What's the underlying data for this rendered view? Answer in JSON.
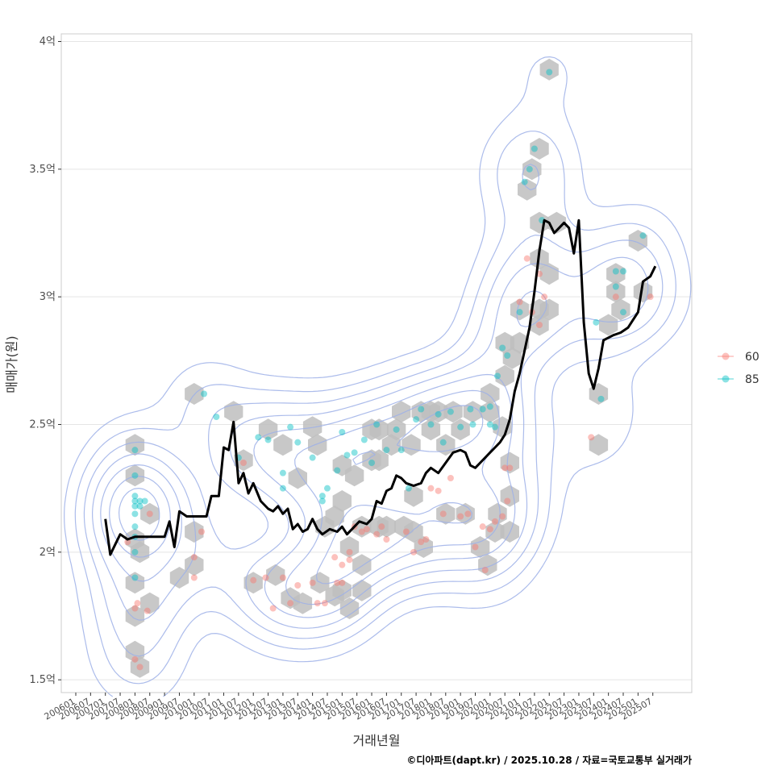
{
  "chart_data": {
    "type": "line",
    "title": "",
    "xlabel": "거래년월",
    "ylabel": "매매가(원)",
    "caption": "©디아파트(dapt.kr) / 2025.10.28 / 자료=국토교통부 실거래가",
    "x_range": [
      "2006-01",
      "2025-12"
    ],
    "ylim": [
      1.45,
      4.03
    ],
    "y_ticks": [
      {
        "value": 1.5,
        "label": "1.5억"
      },
      {
        "value": 2.0,
        "label": "2억"
      },
      {
        "value": 2.5,
        "label": "2.5억"
      },
      {
        "value": 3.0,
        "label": "3억"
      },
      {
        "value": 3.5,
        "label": "3.5억"
      },
      {
        "value": 4.0,
        "label": "4억"
      }
    ],
    "x_ticks": [
      "200601",
      "200607",
      "200701",
      "200707",
      "200801",
      "200807",
      "200901",
      "200907",
      "201001",
      "201007",
      "201101",
      "201107",
      "201201",
      "201207",
      "201301",
      "201307",
      "201401",
      "201407",
      "201501",
      "201507",
      "201601",
      "201607",
      "201701",
      "201707",
      "201801",
      "201807",
      "201901",
      "201907",
      "202001",
      "202007",
      "202101",
      "202107",
      "202201",
      "202207",
      "202301",
      "202307",
      "202401",
      "202407",
      "202501",
      "202507"
    ],
    "legend": {
      "position": "right",
      "entries": [
        {
          "label": "60",
          "color": "#F8766D"
        },
        {
          "label": "85",
          "color": "#00BFC4"
        }
      ]
    },
    "colors": {
      "line": "#000000",
      "hex": "#BEBEBE",
      "contour": "#9DB0E8",
      "grid": "#E5E5E5",
      "panel_border": "#CCCCCC"
    },
    "trend_line": [
      [
        "2007-01",
        2.13
      ],
      [
        "2007-03",
        1.99
      ],
      [
        "2007-05",
        2.03
      ],
      [
        "2007-07",
        2.07
      ],
      [
        "2007-10",
        2.05
      ],
      [
        "2008-01",
        2.06
      ],
      [
        "2008-06",
        2.06
      ],
      [
        "2008-10",
        2.06
      ],
      [
        "2009-01",
        2.06
      ],
      [
        "2009-03",
        2.12
      ],
      [
        "2009-05",
        2.02
      ],
      [
        "2009-07",
        2.16
      ],
      [
        "2009-10",
        2.14
      ],
      [
        "2010-01",
        2.14
      ],
      [
        "2010-06",
        2.14
      ],
      [
        "2010-08",
        2.22
      ],
      [
        "2010-11",
        2.22
      ],
      [
        "2011-01",
        2.41
      ],
      [
        "2011-03",
        2.4
      ],
      [
        "2011-05",
        2.51
      ],
      [
        "2011-07",
        2.27
      ],
      [
        "2011-09",
        2.31
      ],
      [
        "2011-11",
        2.23
      ],
      [
        "2012-01",
        2.27
      ],
      [
        "2012-04",
        2.2
      ],
      [
        "2012-07",
        2.17
      ],
      [
        "2012-09",
        2.16
      ],
      [
        "2012-11",
        2.18
      ],
      [
        "2013-01",
        2.15
      ],
      [
        "2013-03",
        2.17
      ],
      [
        "2013-05",
        2.09
      ],
      [
        "2013-07",
        2.11
      ],
      [
        "2013-09",
        2.08
      ],
      [
        "2013-11",
        2.09
      ],
      [
        "2014-01",
        2.13
      ],
      [
        "2014-03",
        2.09
      ],
      [
        "2014-05",
        2.07
      ],
      [
        "2014-08",
        2.09
      ],
      [
        "2014-11",
        2.08
      ],
      [
        "2015-01",
        2.1
      ],
      [
        "2015-03",
        2.07
      ],
      [
        "2015-05",
        2.09
      ],
      [
        "2015-08",
        2.12
      ],
      [
        "2015-11",
        2.11
      ],
      [
        "2016-01",
        2.13
      ],
      [
        "2016-03",
        2.2
      ],
      [
        "2016-05",
        2.19
      ],
      [
        "2016-07",
        2.24
      ],
      [
        "2016-09",
        2.25
      ],
      [
        "2016-11",
        2.3
      ],
      [
        "2017-01",
        2.29
      ],
      [
        "2017-03",
        2.27
      ],
      [
        "2017-06",
        2.26
      ],
      [
        "2017-09",
        2.27
      ],
      [
        "2017-11",
        2.31
      ],
      [
        "2018-01",
        2.33
      ],
      [
        "2018-04",
        2.31
      ],
      [
        "2018-07",
        2.35
      ],
      [
        "2018-10",
        2.39
      ],
      [
        "2019-01",
        2.4
      ],
      [
        "2019-03",
        2.39
      ],
      [
        "2019-05",
        2.34
      ],
      [
        "2019-07",
        2.33
      ],
      [
        "2019-09",
        2.35
      ],
      [
        "2019-11",
        2.37
      ],
      [
        "2020-01",
        2.39
      ],
      [
        "2020-03",
        2.41
      ],
      [
        "2020-05",
        2.43
      ],
      [
        "2020-07",
        2.46
      ],
      [
        "2020-09",
        2.52
      ],
      [
        "2020-11",
        2.63
      ],
      [
        "2021-01",
        2.7
      ],
      [
        "2021-03",
        2.79
      ],
      [
        "2021-05",
        2.88
      ],
      [
        "2021-07",
        3.02
      ],
      [
        "2021-09",
        3.18
      ],
      [
        "2021-11",
        3.3
      ],
      [
        "2022-01",
        3.29
      ],
      [
        "2022-03",
        3.25
      ],
      [
        "2022-05",
        3.27
      ],
      [
        "2022-07",
        3.29
      ],
      [
        "2022-09",
        3.27
      ],
      [
        "2022-11",
        3.17
      ],
      [
        "2023-01",
        3.3
      ],
      [
        "2023-03",
        2.9
      ],
      [
        "2023-05",
        2.7
      ],
      [
        "2023-07",
        2.64
      ],
      [
        "2023-09",
        2.72
      ],
      [
        "2023-11",
        2.83
      ],
      [
        "2024-01",
        2.84
      ],
      [
        "2024-03",
        2.85
      ],
      [
        "2024-06",
        2.86
      ],
      [
        "2024-09",
        2.88
      ],
      [
        "2024-11",
        2.91
      ],
      [
        "2025-01",
        2.94
      ],
      [
        "2025-03",
        3.06
      ],
      [
        "2025-06",
        3.08
      ],
      [
        "2025-08",
        3.12
      ]
    ],
    "hex_bins": [
      [
        "2008-01",
        2.42
      ],
      [
        "2008-01",
        2.3
      ],
      [
        "2008-01",
        2.05
      ],
      [
        "2008-01",
        1.88
      ],
      [
        "2008-03",
        2.0
      ],
      [
        "2008-07",
        2.15
      ],
      [
        "2008-07",
        1.8
      ],
      [
        "2008-01",
        1.75
      ],
      [
        "2008-01",
        1.61
      ],
      [
        "2008-03",
        1.55
      ],
      [
        "2009-07",
        1.9
      ],
      [
        "2010-01",
        2.08
      ],
      [
        "2010-01",
        1.95
      ],
      [
        "2010-01",
        2.62
      ],
      [
        "2011-05",
        2.55
      ],
      [
        "2011-09",
        2.36
      ],
      [
        "2012-01",
        1.88
      ],
      [
        "2012-07",
        2.48
      ],
      [
        "2012-10",
        1.91
      ],
      [
        "2013-01",
        2.42
      ],
      [
        "2013-04",
        1.82
      ],
      [
        "2013-07",
        2.29
      ],
      [
        "2013-09",
        1.8
      ],
      [
        "2014-01",
        2.49
      ],
      [
        "2014-03",
        2.42
      ],
      [
        "2014-04",
        1.88
      ],
      [
        "2014-06",
        2.1
      ],
      [
        "2014-10",
        1.83
      ],
      [
        "2014-10",
        2.14
      ],
      [
        "2015-01",
        2.34
      ],
      [
        "2015-01",
        2.2
      ],
      [
        "2015-01",
        1.85
      ],
      [
        "2015-04",
        2.02
      ],
      [
        "2015-04",
        1.78
      ],
      [
        "2015-06",
        2.3
      ],
      [
        "2015-09",
        2.1
      ],
      [
        "2015-09",
        1.95
      ],
      [
        "2015-09",
        1.85
      ],
      [
        "2016-01",
        2.48
      ],
      [
        "2016-01",
        2.36
      ],
      [
        "2016-04",
        2.48
      ],
      [
        "2016-04",
        2.36
      ],
      [
        "2016-04",
        2.1
      ],
      [
        "2016-07",
        2.1
      ],
      [
        "2016-09",
        2.42
      ],
      [
        "2016-11",
        2.48
      ],
      [
        "2017-01",
        2.55
      ],
      [
        "2017-02",
        2.1
      ],
      [
        "2017-05",
        2.42
      ],
      [
        "2017-06",
        2.22
      ],
      [
        "2017-06",
        2.08
      ],
      [
        "2017-09",
        2.55
      ],
      [
        "2017-10",
        2.02
      ],
      [
        "2018-01",
        2.55
      ],
      [
        "2018-01",
        2.48
      ],
      [
        "2018-04",
        2.55
      ],
      [
        "2018-07",
        2.42
      ],
      [
        "2018-07",
        2.15
      ],
      [
        "2018-10",
        2.55
      ],
      [
        "2019-01",
        2.48
      ],
      [
        "2019-03",
        2.15
      ],
      [
        "2019-06",
        2.55
      ],
      [
        "2019-09",
        2.02
      ],
      [
        "2019-12",
        1.95
      ],
      [
        "2020-01",
        2.62
      ],
      [
        "2020-01",
        2.55
      ],
      [
        "2020-03",
        2.08
      ],
      [
        "2020-04",
        2.15
      ],
      [
        "2020-06",
        2.49
      ],
      [
        "2020-07",
        2.82
      ],
      [
        "2020-07",
        2.69
      ],
      [
        "2020-09",
        2.35
      ],
      [
        "2020-09",
        2.22
      ],
      [
        "2020-09",
        2.08
      ],
      [
        "2020-10",
        2.76
      ],
      [
        "2021-01",
        2.82
      ],
      [
        "2021-01",
        2.95
      ],
      [
        "2021-04",
        3.42
      ],
      [
        "2021-06",
        3.5
      ],
      [
        "2021-09",
        3.58
      ],
      [
        "2021-09",
        3.29
      ],
      [
        "2021-09",
        3.15
      ],
      [
        "2021-09",
        2.95
      ],
      [
        "2021-09",
        2.89
      ],
      [
        "2022-01",
        3.09
      ],
      [
        "2022-01",
        2.95
      ],
      [
        "2022-01",
        3.89
      ],
      [
        "2022-04",
        3.29
      ],
      [
        "2023-09",
        2.62
      ],
      [
        "2023-09",
        2.42
      ],
      [
        "2024-01",
        2.89
      ],
      [
        "2024-04",
        3.09
      ],
      [
        "2024-04",
        3.02
      ],
      [
        "2024-06",
        2.95
      ],
      [
        "2025-01",
        3.22
      ],
      [
        "2025-03",
        3.02
      ]
    ],
    "scatter_points": {
      "60": [
        [
          "2007-10",
          2.04
        ],
        [
          "2008-01",
          1.78
        ],
        [
          "2008-01",
          1.58
        ],
        [
          "2008-02",
          1.8
        ],
        [
          "2008-03",
          1.55
        ],
        [
          "2008-06",
          1.77
        ],
        [
          "2008-07",
          2.15
        ],
        [
          "2010-01",
          1.98
        ],
        [
          "2010-01",
          1.9
        ],
        [
          "2010-04",
          2.08
        ],
        [
          "2011-09",
          2.35
        ],
        [
          "2012-01",
          1.89
        ],
        [
          "2012-06",
          1.9
        ],
        [
          "2012-09",
          1.78
        ],
        [
          "2013-01",
          1.9
        ],
        [
          "2013-04",
          1.8
        ],
        [
          "2013-07",
          1.87
        ],
        [
          "2014-01",
          1.88
        ],
        [
          "2014-03",
          1.8
        ],
        [
          "2014-06",
          1.8
        ],
        [
          "2014-10",
          1.98
        ],
        [
          "2014-11",
          1.88
        ],
        [
          "2015-01",
          1.88
        ],
        [
          "2015-01",
          1.95
        ],
        [
          "2015-04",
          1.97
        ],
        [
          "2015-04",
          2.0
        ],
        [
          "2015-06",
          2.1
        ],
        [
          "2015-09",
          2.08
        ],
        [
          "2015-11",
          2.09
        ],
        [
          "2016-03",
          2.07
        ],
        [
          "2016-05",
          2.1
        ],
        [
          "2016-07",
          2.05
        ],
        [
          "2017-03",
          2.08
        ],
        [
          "2017-06",
          2.0
        ],
        [
          "2017-09",
          2.04
        ],
        [
          "2017-11",
          2.05
        ],
        [
          "2018-01",
          2.25
        ],
        [
          "2018-04",
          2.24
        ],
        [
          "2018-06",
          2.15
        ],
        [
          "2018-09",
          2.29
        ],
        [
          "2019-01",
          2.14
        ],
        [
          "2019-04",
          2.15
        ],
        [
          "2019-07",
          2.02
        ],
        [
          "2019-10",
          2.1
        ],
        [
          "2019-11",
          1.93
        ],
        [
          "2020-01",
          2.09
        ],
        [
          "2020-03",
          2.12
        ],
        [
          "2020-06",
          2.14
        ],
        [
          "2020-07",
          2.33
        ],
        [
          "2020-08",
          2.2
        ],
        [
          "2020-09",
          2.33
        ],
        [
          "2021-01",
          2.98
        ],
        [
          "2021-04",
          3.15
        ],
        [
          "2021-06",
          2.94
        ],
        [
          "2021-09",
          3.09
        ],
        [
          "2021-09",
          2.89
        ],
        [
          "2021-11",
          3.0
        ],
        [
          "2023-06",
          2.45
        ],
        [
          "2024-04",
          3.0
        ],
        [
          "2025-06",
          3.0
        ]
      ],
      "85": [
        [
          "2008-01",
          2.4
        ],
        [
          "2008-01",
          2.3
        ],
        [
          "2008-01",
          2.22
        ],
        [
          "2008-01",
          2.2
        ],
        [
          "2008-01",
          2.18
        ],
        [
          "2008-01",
          2.15
        ],
        [
          "2008-01",
          2.1
        ],
        [
          "2008-01",
          2.06
        ],
        [
          "2008-01",
          2.0
        ],
        [
          "2008-01",
          1.9
        ],
        [
          "2008-03",
          2.2
        ],
        [
          "2008-03",
          2.18
        ],
        [
          "2008-05",
          2.2
        ],
        [
          "2010-05",
          2.62
        ],
        [
          "2010-10",
          2.53
        ],
        [
          "2011-07",
          2.37
        ],
        [
          "2012-03",
          2.45
        ],
        [
          "2012-07",
          2.44
        ],
        [
          "2013-01",
          2.25
        ],
        [
          "2013-01",
          2.31
        ],
        [
          "2013-04",
          2.49
        ],
        [
          "2013-07",
          2.43
        ],
        [
          "2014-01",
          2.37
        ],
        [
          "2014-05",
          2.2
        ],
        [
          "2014-05",
          2.22
        ],
        [
          "2014-07",
          2.25
        ],
        [
          "2014-11",
          2.32
        ],
        [
          "2015-01",
          2.47
        ],
        [
          "2015-03",
          2.38
        ],
        [
          "2015-06",
          2.39
        ],
        [
          "2015-10",
          2.44
        ],
        [
          "2016-01",
          2.35
        ],
        [
          "2016-03",
          2.5
        ],
        [
          "2016-07",
          2.4
        ],
        [
          "2016-11",
          2.48
        ],
        [
          "2017-01",
          2.4
        ],
        [
          "2017-04",
          2.25
        ],
        [
          "2017-07",
          2.52
        ],
        [
          "2017-09",
          2.56
        ],
        [
          "2018-01",
          2.5
        ],
        [
          "2018-04",
          2.54
        ],
        [
          "2018-06",
          2.43
        ],
        [
          "2018-09",
          2.55
        ],
        [
          "2019-01",
          2.49
        ],
        [
          "2019-05",
          2.56
        ],
        [
          "2019-06",
          2.5
        ],
        [
          "2019-10",
          2.56
        ],
        [
          "2020-01",
          2.57
        ],
        [
          "2020-01",
          2.5
        ],
        [
          "2020-03",
          2.49
        ],
        [
          "2020-04",
          2.69
        ],
        [
          "2020-06",
          2.8
        ],
        [
          "2020-08",
          2.77
        ],
        [
          "2021-01",
          2.94
        ],
        [
          "2021-03",
          3.45
        ],
        [
          "2021-05",
          3.5
        ],
        [
          "2021-07",
          3.58
        ],
        [
          "2021-10",
          3.3
        ],
        [
          "2022-01",
          3.88
        ],
        [
          "2023-08",
          2.9
        ],
        [
          "2023-10",
          2.6
        ],
        [
          "2024-04",
          3.04
        ],
        [
          "2024-04",
          3.1
        ],
        [
          "2024-07",
          3.1
        ],
        [
          "2024-07",
          2.94
        ],
        [
          "2025-03",
          3.24
        ]
      ]
    }
  }
}
